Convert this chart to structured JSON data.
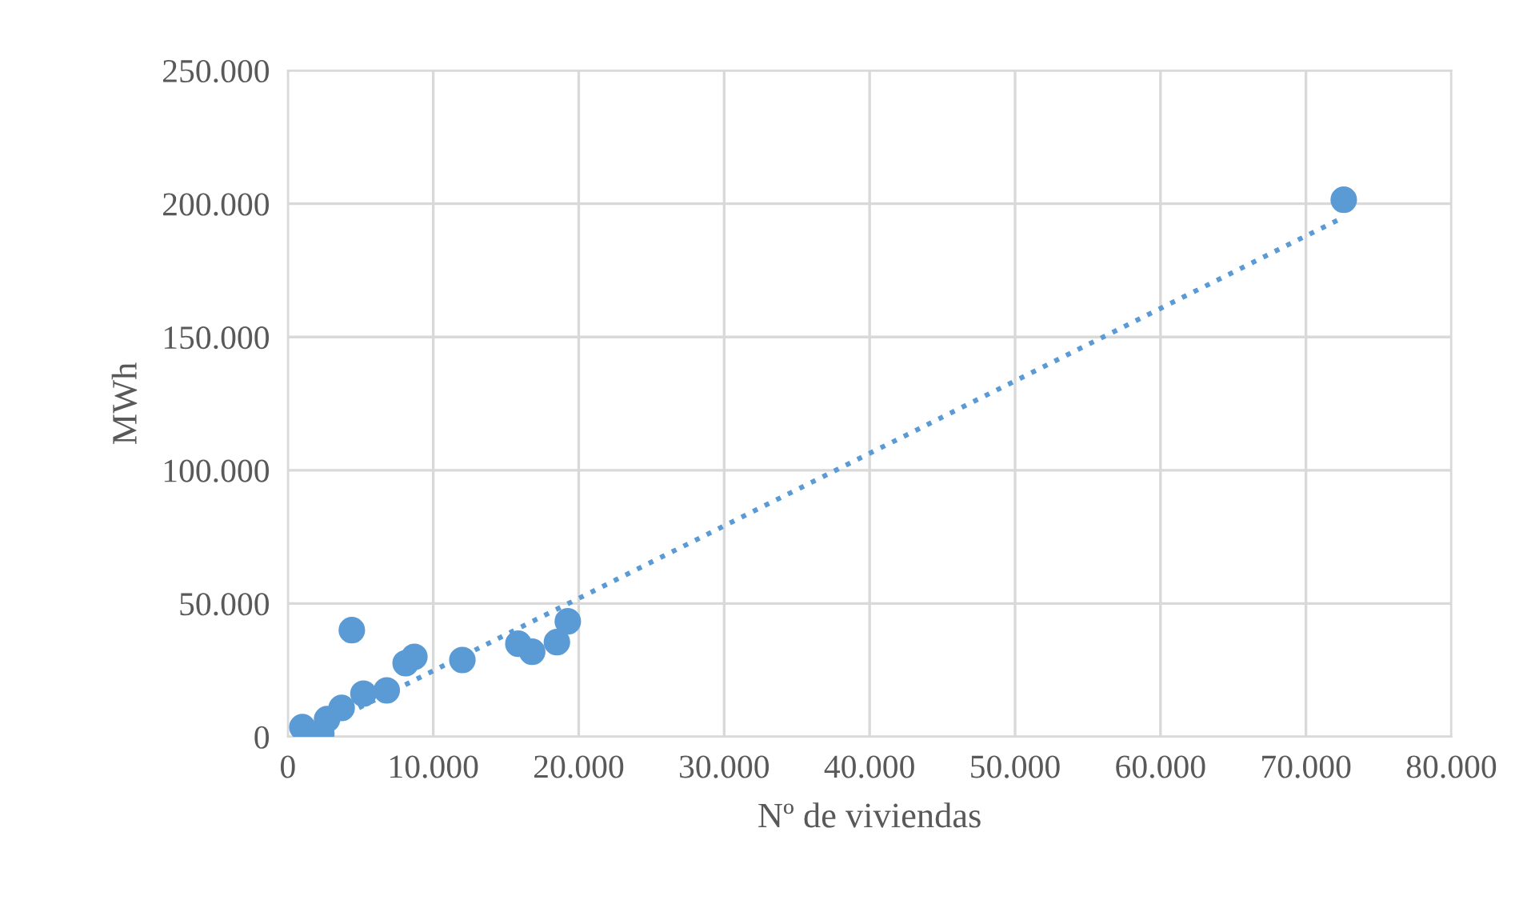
{
  "chart_data": {
    "type": "scatter",
    "xlabel": "Nº de viviendas",
    "ylabel": "MWh",
    "xlim": [
      0,
      80000
    ],
    "ylim": [
      0,
      250000
    ],
    "xticks": [
      0,
      {
        "value": 10000,
        "label": "10.000"
      },
      {
        "value": 20000,
        "label": "20.000"
      },
      {
        "value": 30000,
        "label": "30.000"
      },
      {
        "value": 40000,
        "label": "40.000"
      },
      {
        "value": 50000,
        "label": "50.000"
      },
      {
        "value": 60000,
        "label": "60.000"
      },
      {
        "value": 70000,
        "label": "70.000"
      },
      {
        "value": 80000,
        "label": "80.000"
      }
    ],
    "yticks": [
      0,
      {
        "value": 50000,
        "label": "50.000"
      },
      {
        "value": 100000,
        "label": "100.000"
      },
      {
        "value": 150000,
        "label": "150.000"
      },
      {
        "value": 200000,
        "label": "200.000"
      },
      {
        "value": 250000,
        "label": "250.000"
      }
    ],
    "grid": true,
    "marker": "circle",
    "series": [
      {
        "color": "#5b9bd5",
        "x": [
          1000,
          2300,
          2700,
          3700,
          4400,
          5200,
          6800,
          8100,
          8700,
          12000,
          15850,
          16800,
          18500,
          19250,
          72600
        ],
        "values": [
          3600,
          1200,
          6600,
          10800,
          40000,
          16200,
          17400,
          27600,
          30000,
          28800,
          34900,
          31900,
          35500,
          43300,
          201500
        ]
      },
      {
        "type": "line",
        "color": "#5b9bd5",
        "line_style": "dotted",
        "marker": "none",
        "x": [
          900,
          72600
        ],
        "values": [
          0,
          195000
        ]
      }
    ]
  }
}
